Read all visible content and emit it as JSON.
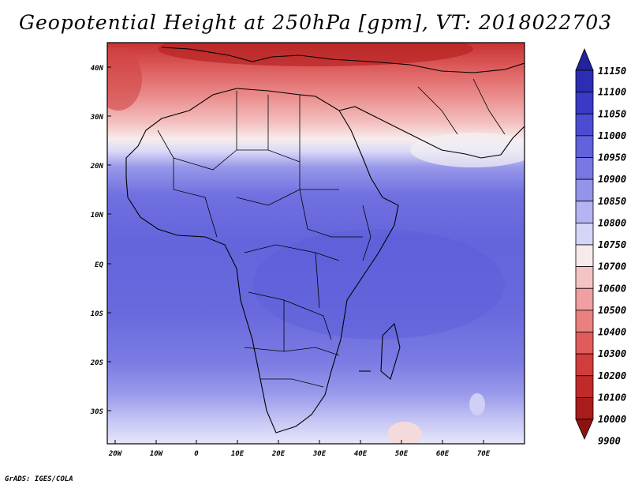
{
  "title": "Geopotential Height at 250hPa [gpm], VT: 2018022703",
  "credit": "GrADS: IGES/COLA",
  "map": {
    "lon_labels": [
      "20W",
      "10W",
      "0",
      "10E",
      "20E",
      "30E",
      "40E",
      "50E",
      "60E",
      "70E"
    ],
    "lat_labels": [
      "40N",
      "30N",
      "20N",
      "10N",
      "EQ",
      "10S",
      "20S",
      "30S"
    ]
  },
  "colorbar": {
    "top_label": "11150",
    "levels": [
      "11100",
      "11050",
      "11000",
      "10950",
      "10900",
      "10850",
      "10800",
      "10750",
      "10700",
      "10600",
      "10500",
      "10400",
      "10300",
      "10200",
      "10100",
      "10000",
      "9900"
    ],
    "colors": [
      "#23239b",
      "#2d2db4",
      "#3a3ac8",
      "#4c4cd3",
      "#6262dc",
      "#7878e3",
      "#9494ea",
      "#b4b4f1",
      "#d5d5f7",
      "#f6eaea",
      "#f4c4c4",
      "#f0a0a0",
      "#ea8080",
      "#e05c5c",
      "#d23c3c",
      "#c22a2a",
      "#a81c1c",
      "#8f1212"
    ]
  }
}
